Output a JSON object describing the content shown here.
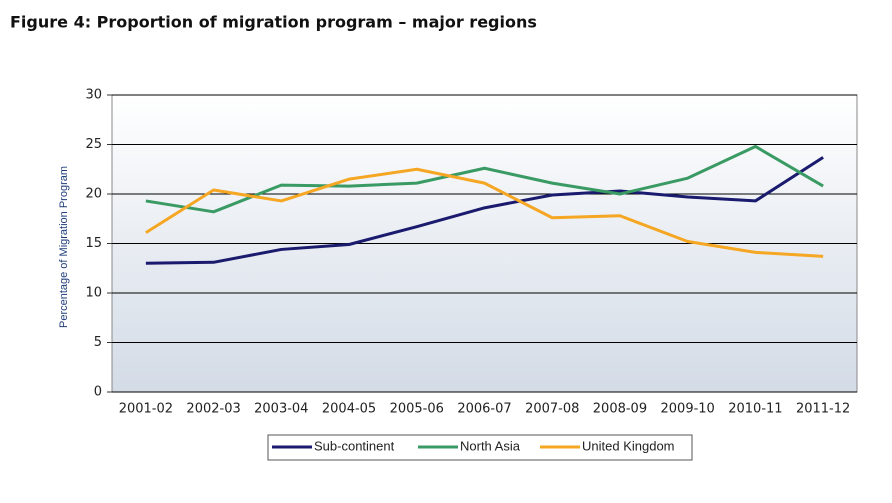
{
  "chart_data": {
    "type": "line",
    "title": "Figure 4: Proportion of migration program – major regions",
    "y_label": "Percentage of Migration Program",
    "categories": [
      "2001-02",
      "2002-03",
      "2003-04",
      "2004-05",
      "2005-06",
      "2006-07",
      "2007-08",
      "2008-09",
      "2009-10",
      "2010-11",
      "2011-12"
    ],
    "series": [
      {
        "name": "Sub-continent",
        "color": "#1a1a6e",
        "values": [
          13.0,
          13.1,
          14.4,
          14.9,
          16.7,
          18.6,
          19.9,
          20.3,
          19.7,
          19.3,
          23.7
        ]
      },
      {
        "name": "North Asia",
        "color": "#3a9a64",
        "values": [
          19.3,
          18.2,
          20.9,
          20.8,
          21.1,
          22.6,
          21.1,
          20.0,
          21.6,
          24.8,
          20.8
        ]
      },
      {
        "name": "United Kingdom",
        "color": "#f5a623",
        "values": [
          16.1,
          20.4,
          19.3,
          21.5,
          22.5,
          21.1,
          17.6,
          17.8,
          15.2,
          14.1,
          13.7
        ]
      }
    ],
    "ylim": [
      0,
      30
    ],
    "yticks": [
      0,
      5,
      10,
      15,
      20,
      25,
      30
    ],
    "grid": true,
    "legend": "bottom"
  }
}
